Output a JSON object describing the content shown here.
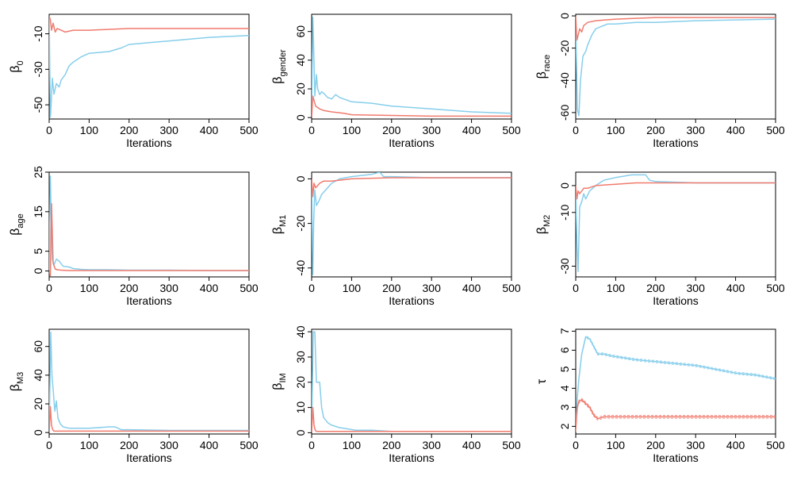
{
  "series_colors": {
    "blue": "#87CEEB",
    "red": "#F07B6E"
  },
  "chart_data": [
    {
      "type": "line",
      "name": "beta0",
      "ylabel_main": "β",
      "ylabel_sub": "0",
      "xlabel": "Iterations",
      "xlim": [
        0,
        500
      ],
      "ylim": [
        -58,
        1
      ],
      "xticks": [
        0,
        100,
        200,
        300,
        400,
        500
      ],
      "yticks": [
        -50,
        -30,
        -10
      ],
      "series": [
        {
          "name": "blue",
          "x": [
            0,
            3,
            5,
            8,
            12,
            18,
            25,
            30,
            40,
            50,
            60,
            80,
            100,
            150,
            180,
            200,
            250,
            300,
            400,
            500
          ],
          "y": [
            0,
            -57,
            -50,
            -35,
            -44,
            -38,
            -40,
            -36,
            -33,
            -28,
            -26,
            -23,
            -21,
            -20,
            -18,
            -16,
            -15,
            -14,
            -12,
            -11
          ]
        },
        {
          "name": "red",
          "x": [
            0,
            3,
            6,
            10,
            15,
            20,
            30,
            40,
            60,
            100,
            200,
            300,
            400,
            500
          ],
          "y": [
            0,
            -2,
            -8,
            -4,
            -9,
            -7,
            -8,
            -9,
            -8,
            -8,
            -7,
            -7,
            -7,
            -7
          ]
        }
      ]
    },
    {
      "type": "line",
      "name": "beta_gender",
      "ylabel_main": "β",
      "ylabel_sub": "gender",
      "xlabel": "Iterations",
      "xlim": [
        0,
        500
      ],
      "ylim": [
        -1,
        72
      ],
      "xticks": [
        0,
        100,
        200,
        300,
        400,
        500
      ],
      "yticks": [
        0,
        20,
        40,
        60
      ],
      "series": [
        {
          "name": "blue",
          "x": [
            0,
            3,
            5,
            8,
            12,
            15,
            20,
            25,
            30,
            40,
            50,
            60,
            70,
            80,
            100,
            150,
            200,
            300,
            400,
            500
          ],
          "y": [
            0,
            70,
            50,
            15,
            30,
            20,
            16,
            18,
            17,
            14,
            13,
            16,
            14,
            13,
            11,
            10,
            8,
            6,
            4,
            3
          ]
        },
        {
          "name": "red",
          "x": [
            0,
            3,
            6,
            10,
            20,
            30,
            50,
            80,
            100,
            200,
            300,
            400,
            500
          ],
          "y": [
            0,
            15,
            12,
            8,
            6,
            5,
            4,
            3,
            2,
            1.5,
            1,
            1,
            1
          ]
        }
      ]
    },
    {
      "type": "line",
      "name": "beta_race",
      "ylabel_main": "β",
      "ylabel_sub": "race",
      "xlabel": "Iterations",
      "xlim": [
        0,
        500
      ],
      "ylim": [
        -64,
        1
      ],
      "xticks": [
        0,
        100,
        200,
        300,
        400,
        500
      ],
      "yticks": [
        -60,
        -40,
        -20,
        0
      ],
      "series": [
        {
          "name": "blue",
          "x": [
            0,
            4,
            8,
            12,
            18,
            25,
            30,
            40,
            50,
            60,
            80,
            100,
            150,
            200,
            300,
            400,
            500
          ],
          "y": [
            -2,
            -58,
            -62,
            -40,
            -25,
            -22,
            -18,
            -12,
            -8,
            -7,
            -5,
            -5,
            -4,
            -4,
            -3,
            -2.5,
            -2
          ]
        },
        {
          "name": "red",
          "x": [
            0,
            3,
            6,
            10,
            15,
            20,
            30,
            50,
            100,
            200,
            300,
            400,
            500
          ],
          "y": [
            0,
            -15,
            -12,
            -8,
            -10,
            -6,
            -4,
            -3,
            -2,
            -1,
            -1,
            -1,
            -1
          ]
        }
      ]
    },
    {
      "type": "line",
      "name": "beta_age",
      "ylabel_main": "β",
      "ylabel_sub": "age",
      "xlabel": "Iterations",
      "xlim": [
        0,
        500
      ],
      "ylim": [
        -1.5,
        25
      ],
      "xticks": [
        0,
        100,
        200,
        300,
        400,
        500
      ],
      "yticks": [
        0,
        5,
        15,
        25
      ],
      "series": [
        {
          "name": "blue",
          "x": [
            0,
            3,
            5,
            8,
            12,
            18,
            25,
            35,
            50,
            60,
            80,
            100,
            150,
            200,
            300,
            400,
            500
          ],
          "y": [
            0,
            24,
            14,
            3,
            1.5,
            3,
            2.5,
            1.2,
            1,
            0.6,
            0.4,
            0.3,
            0.3,
            0.2,
            0.2,
            0.1,
            0.1
          ]
        },
        {
          "name": "red",
          "x": [
            0,
            3,
            6,
            10,
            15,
            20,
            30,
            50,
            100,
            200,
            300,
            400,
            500
          ],
          "y": [
            0,
            -1.2,
            17,
            2,
            0.5,
            0.3,
            0.2,
            0.1,
            0.1,
            0.1,
            0.1,
            0.1,
            0.1
          ]
        }
      ]
    },
    {
      "type": "line",
      "name": "beta_M1",
      "ylabel_main": "β",
      "ylabel_sub": "M1",
      "xlabel": "Iterations",
      "xlim": [
        0,
        500
      ],
      "ylim": [
        -44,
        3
      ],
      "xticks": [
        0,
        100,
        200,
        300,
        400,
        500
      ],
      "yticks": [
        -40,
        -20,
        0
      ],
      "series": [
        {
          "name": "blue",
          "x": [
            0,
            3,
            5,
            8,
            12,
            18,
            25,
            35,
            50,
            70,
            100,
            150,
            170,
            180,
            200,
            300,
            400,
            500
          ],
          "y": [
            0,
            -43,
            -20,
            -5,
            -12,
            -10,
            -7,
            -5,
            -2,
            0,
            1,
            2,
            3,
            1,
            1,
            0.5,
            0.5,
            0.5
          ]
        },
        {
          "name": "red",
          "x": [
            0,
            3,
            6,
            10,
            15,
            20,
            30,
            50,
            100,
            200,
            300,
            400,
            500
          ],
          "y": [
            0,
            -8,
            -2,
            -4,
            -3,
            -2,
            -1,
            -1,
            0,
            0.5,
            0.5,
            0.5,
            0.5
          ]
        }
      ]
    },
    {
      "type": "line",
      "name": "beta_M2",
      "ylabel_main": "β",
      "ylabel_sub": "M2",
      "xlabel": "Iterations",
      "xlim": [
        0,
        500
      ],
      "ylim": [
        -34,
        5
      ],
      "xticks": [
        0,
        100,
        200,
        300,
        400,
        500
      ],
      "yticks": [
        -30,
        -10,
        0
      ],
      "series": [
        {
          "name": "blue",
          "x": [
            0,
            3,
            6,
            10,
            15,
            20,
            25,
            35,
            50,
            70,
            100,
            140,
            160,
            175,
            185,
            200,
            300,
            400,
            500
          ],
          "y": [
            0,
            -22,
            -32,
            -8,
            -6,
            -3,
            -5,
            -2,
            0,
            2,
            3,
            4,
            4,
            4,
            2,
            1.5,
            1,
            1,
            1
          ]
        },
        {
          "name": "red",
          "x": [
            0,
            3,
            6,
            10,
            15,
            20,
            30,
            50,
            100,
            150,
            200,
            300,
            400,
            500
          ],
          "y": [
            0,
            -5,
            -2,
            -3,
            -2,
            -1,
            -1,
            0,
            0.5,
            1,
            1,
            1,
            1,
            1
          ]
        }
      ]
    },
    {
      "type": "line",
      "name": "beta_M3",
      "ylabel_main": "β",
      "ylabel_sub": "M3",
      "xlabel": "Iterations",
      "xlim": [
        0,
        500
      ],
      "ylim": [
        -1,
        72
      ],
      "xticks": [
        0,
        100,
        200,
        300,
        400,
        500
      ],
      "yticks": [
        0,
        20,
        40,
        60
      ],
      "series": [
        {
          "name": "blue",
          "x": [
            0,
            4,
            7,
            10,
            14,
            18,
            22,
            28,
            35,
            50,
            70,
            100,
            150,
            165,
            180,
            200,
            300,
            400,
            500
          ],
          "y": [
            0,
            70,
            40,
            30,
            15,
            22,
            10,
            6,
            4,
            3,
            3,
            3,
            4,
            4,
            2,
            2,
            1.5,
            1.5,
            1.5
          ]
        },
        {
          "name": "red",
          "x": [
            0,
            3,
            6,
            9,
            12,
            20,
            30,
            50,
            100,
            200,
            300,
            400,
            500
          ],
          "y": [
            0,
            18,
            5,
            2,
            1,
            1,
            1,
            1,
            1,
            1,
            1,
            1,
            1
          ]
        }
      ]
    },
    {
      "type": "line",
      "name": "beta_IM",
      "ylabel_main": "β",
      "ylabel_sub": "IM",
      "xlabel": "Iterations",
      "xlim": [
        0,
        500
      ],
      "ylim": [
        -0.5,
        41
      ],
      "xticks": [
        0,
        100,
        200,
        300,
        400,
        500
      ],
      "yticks": [
        0,
        10,
        20,
        30,
        40
      ],
      "series": [
        {
          "name": "blue",
          "x": [
            0,
            4,
            8,
            12,
            20,
            25,
            30,
            40,
            50,
            70,
            90,
            110,
            150,
            200,
            300,
            400,
            500
          ],
          "y": [
            0,
            40,
            40,
            20,
            20,
            10,
            6,
            4,
            3,
            2,
            1.5,
            1,
            1,
            0.5,
            0.5,
            0.5,
            0.5
          ]
        },
        {
          "name": "red",
          "x": [
            0,
            3,
            6,
            9,
            12,
            20,
            30,
            50,
            100,
            200,
            300,
            400,
            500
          ],
          "y": [
            0,
            10,
            3,
            1,
            0.5,
            0.5,
            0.5,
            0.5,
            0.5,
            0.5,
            0.5,
            0.5,
            0.5
          ]
        }
      ]
    },
    {
      "type": "line",
      "name": "tau",
      "ylabel_main": "τ",
      "ylabel_sub": "",
      "xlabel": "Iterations",
      "xlim": [
        0,
        500
      ],
      "ylim": [
        1.6,
        7.1
      ],
      "xticks": [
        0,
        100,
        200,
        300,
        400,
        500
      ],
      "yticks": [
        2,
        3,
        4,
        5,
        6,
        7
      ],
      "series": [
        {
          "name": "blue",
          "band": 0.06,
          "x": [
            0,
            4,
            8,
            15,
            25,
            35,
            45,
            55,
            70,
            90,
            120,
            150,
            200,
            250,
            300,
            350,
            400,
            450,
            500
          ],
          "y": [
            2.0,
            3.5,
            4.5,
            5.8,
            6.7,
            6.6,
            6.2,
            5.8,
            5.8,
            5.7,
            5.6,
            5.5,
            5.4,
            5.3,
            5.2,
            5.0,
            4.8,
            4.7,
            4.5
          ]
        },
        {
          "name": "red",
          "band": 0.07,
          "x": [
            0,
            4,
            8,
            15,
            25,
            35,
            45,
            55,
            70,
            90,
            120,
            150,
            200,
            250,
            300,
            400,
            500
          ],
          "y": [
            1.8,
            3.0,
            3.3,
            3.4,
            3.2,
            3.0,
            2.6,
            2.4,
            2.5,
            2.5,
            2.5,
            2.5,
            2.5,
            2.5,
            2.5,
            2.5,
            2.5
          ]
        }
      ]
    }
  ]
}
